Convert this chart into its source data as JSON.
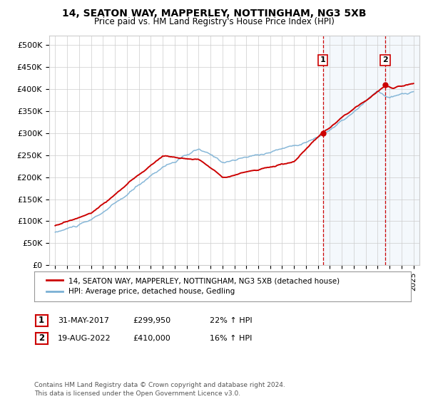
{
  "title": "14, SEATON WAY, MAPPERLEY, NOTTINGHAM, NG3 5XB",
  "subtitle": "Price paid vs. HM Land Registry's House Price Index (HPI)",
  "ylabel_ticks": [
    "£0",
    "£50K",
    "£100K",
    "£150K",
    "£200K",
    "£250K",
    "£300K",
    "£350K",
    "£400K",
    "£450K",
    "£500K"
  ],
  "ytick_values": [
    0,
    50000,
    100000,
    150000,
    200000,
    250000,
    300000,
    350000,
    400000,
    450000,
    500000
  ],
  "ylim": [
    0,
    520000
  ],
  "xlim_start": 1994.5,
  "xlim_end": 2025.5,
  "sale1_date": 2017.42,
  "sale1_price": 299950,
  "sale2_date": 2022.63,
  "sale2_price": 410000,
  "legend1": "14, SEATON WAY, MAPPERLEY, NOTTINGHAM, NG3 5XB (detached house)",
  "legend2": "HPI: Average price, detached house, Gedling",
  "annotation1_date": "31-MAY-2017",
  "annotation1_price": "£299,950",
  "annotation1_hpi": "22% ↑ HPI",
  "annotation2_date": "19-AUG-2022",
  "annotation2_price": "£410,000",
  "annotation2_hpi": "16% ↑ HPI",
  "footer": "Contains HM Land Registry data © Crown copyright and database right 2024.\nThis data is licensed under the Open Government Licence v3.0.",
  "line1_color": "#cc0000",
  "line2_color": "#7ab0d4",
  "vline_color": "#cc0000",
  "shade_color": "#ddeeff",
  "box_color": "#cc0000",
  "background_color": "#ffffff",
  "grid_color": "#cccccc",
  "title_fontsize": 10,
  "subtitle_fontsize": 8.5,
  "tick_fontsize": 8,
  "legend_fontsize": 7.5,
  "ann_fontsize": 8
}
